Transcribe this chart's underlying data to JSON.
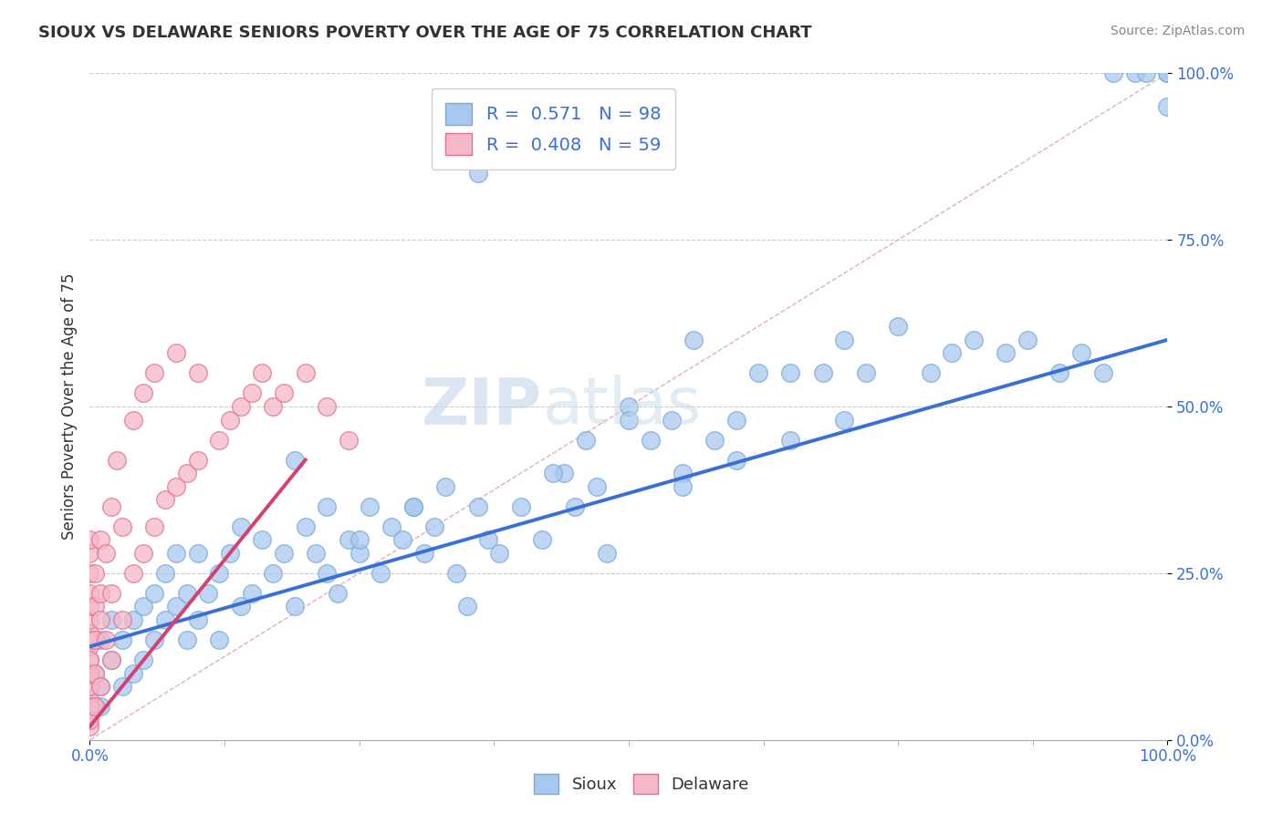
{
  "title": "SIOUX VS DELAWARE SENIORS POVERTY OVER THE AGE OF 75 CORRELATION CHART",
  "source": "Source: ZipAtlas.com",
  "ylabel": "Seniors Poverty Over the Age of 75",
  "sioux_R": 0.571,
  "sioux_N": 98,
  "delaware_R": 0.408,
  "delaware_N": 59,
  "sioux_color": "#a8c8f0",
  "sioux_edge_color": "#7aaad4",
  "delaware_color": "#f5b8c8",
  "delaware_edge_color": "#e07090",
  "blue_line_color": "#3a6fd8",
  "pink_line_color": "#d44070",
  "ref_line_color": "#e0b0bc",
  "legend_text_color": "#3a6fd8",
  "background_color": "#ffffff",
  "grid_color": "#cccccc",
  "ytick_labels": [
    "0.0%",
    "25.0%",
    "50.0%",
    "75.0%",
    "100.0%"
  ],
  "ytick_values": [
    0,
    0.25,
    0.5,
    0.75,
    1.0
  ],
  "xtick_labels": [
    "0.0%",
    "100.0%"
  ],
  "watermark_text": "ZIPatlas",
  "sioux_x": [
    0.005,
    0.005,
    0.01,
    0.01,
    0.01,
    0.02,
    0.02,
    0.03,
    0.03,
    0.04,
    0.04,
    0.05,
    0.05,
    0.06,
    0.06,
    0.07,
    0.07,
    0.08,
    0.08,
    0.09,
    0.09,
    0.1,
    0.1,
    0.11,
    0.12,
    0.12,
    0.13,
    0.14,
    0.14,
    0.15,
    0.16,
    0.17,
    0.18,
    0.19,
    0.2,
    0.21,
    0.22,
    0.22,
    0.23,
    0.24,
    0.25,
    0.26,
    0.27,
    0.28,
    0.29,
    0.3,
    0.31,
    0.32,
    0.33,
    0.34,
    0.35,
    0.36,
    0.37,
    0.38,
    0.4,
    0.42,
    0.44,
    0.45,
    0.46,
    0.47,
    0.48,
    0.5,
    0.52,
    0.54,
    0.55,
    0.56,
    0.58,
    0.6,
    0.62,
    0.65,
    0.68,
    0.7,
    0.72,
    0.75,
    0.78,
    0.8,
    0.82,
    0.85,
    0.87,
    0.9,
    0.92,
    0.94,
    0.95,
    0.97,
    0.98,
    1.0,
    1.0,
    1.0,
    0.36,
    0.19,
    0.5,
    0.43,
    0.3,
    0.25,
    0.55,
    0.6,
    0.65,
    0.7
  ],
  "sioux_y": [
    0.05,
    0.1,
    0.08,
    0.15,
    0.05,
    0.12,
    0.18,
    0.15,
    0.08,
    0.18,
    0.1,
    0.2,
    0.12,
    0.22,
    0.15,
    0.25,
    0.18,
    0.2,
    0.28,
    0.22,
    0.15,
    0.18,
    0.28,
    0.22,
    0.25,
    0.15,
    0.28,
    0.2,
    0.32,
    0.22,
    0.3,
    0.25,
    0.28,
    0.2,
    0.32,
    0.28,
    0.25,
    0.35,
    0.22,
    0.3,
    0.28,
    0.35,
    0.25,
    0.32,
    0.3,
    0.35,
    0.28,
    0.32,
    0.38,
    0.25,
    0.2,
    0.35,
    0.3,
    0.28,
    0.35,
    0.3,
    0.4,
    0.35,
    0.45,
    0.38,
    0.28,
    0.5,
    0.45,
    0.48,
    0.4,
    0.6,
    0.45,
    0.48,
    0.55,
    0.45,
    0.55,
    0.6,
    0.55,
    0.62,
    0.55,
    0.58,
    0.6,
    0.58,
    0.6,
    0.55,
    0.58,
    0.55,
    1.0,
    1.0,
    1.0,
    1.0,
    0.95,
    1.0,
    0.85,
    0.42,
    0.48,
    0.4,
    0.35,
    0.3,
    0.38,
    0.42,
    0.55,
    0.48
  ],
  "delaware_x": [
    0.0,
    0.0,
    0.0,
    0.0,
    0.0,
    0.0,
    0.0,
    0.0,
    0.0,
    0.0,
    0.0,
    0.0,
    0.0,
    0.0,
    0.0,
    0.0,
    0.0,
    0.0,
    0.0,
    0.0,
    0.005,
    0.005,
    0.005,
    0.005,
    0.005,
    0.01,
    0.01,
    0.01,
    0.01,
    0.015,
    0.015,
    0.02,
    0.02,
    0.02,
    0.025,
    0.03,
    0.03,
    0.04,
    0.04,
    0.05,
    0.05,
    0.06,
    0.06,
    0.07,
    0.08,
    0.08,
    0.09,
    0.1,
    0.1,
    0.12,
    0.13,
    0.14,
    0.15,
    0.16,
    0.17,
    0.18,
    0.2,
    0.22,
    0.24
  ],
  "delaware_y": [
    0.02,
    0.04,
    0.06,
    0.08,
    0.1,
    0.12,
    0.14,
    0.16,
    0.18,
    0.2,
    0.22,
    0.25,
    0.28,
    0.3,
    0.05,
    0.03,
    0.08,
    0.15,
    0.1,
    0.12,
    0.05,
    0.1,
    0.15,
    0.2,
    0.25,
    0.08,
    0.18,
    0.3,
    0.22,
    0.15,
    0.28,
    0.12,
    0.22,
    0.35,
    0.42,
    0.18,
    0.32,
    0.25,
    0.48,
    0.28,
    0.52,
    0.32,
    0.55,
    0.36,
    0.38,
    0.58,
    0.4,
    0.42,
    0.55,
    0.45,
    0.48,
    0.5,
    0.52,
    0.55,
    0.5,
    0.52,
    0.55,
    0.5,
    0.45
  ]
}
